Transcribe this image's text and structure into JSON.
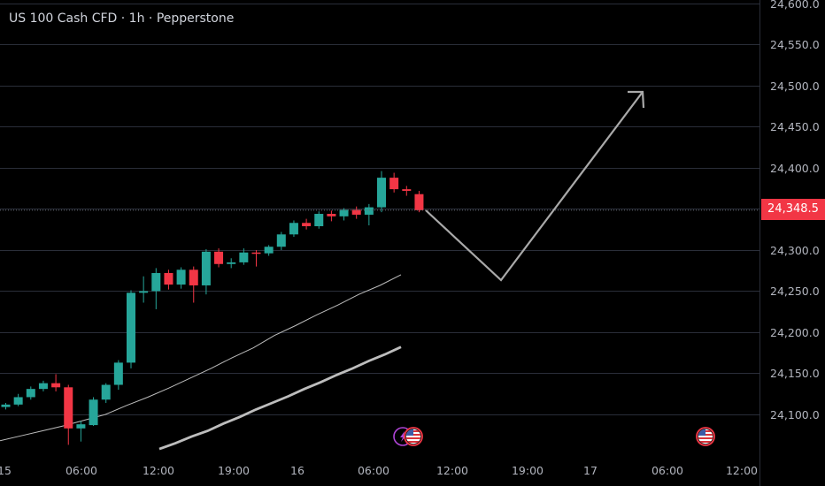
{
  "header": {
    "title": "US 100 Cash CFD · 1h · Pepperstone"
  },
  "current_price": {
    "label": "24,348.5",
    "value": 24348.5,
    "color": "#f23645"
  },
  "colors": {
    "up": "#26a69a",
    "down": "#f23645",
    "ma": "#bdbdbd",
    "arrow": "#a9a9a9",
    "grid": "#2a2e39"
  },
  "icons": [
    "lightning-event-icon",
    "us-flag-event-icon",
    "us-flag-event-icon"
  ],
  "chart_data": {
    "type": "candlestick",
    "price_axis": {
      "ticks": [
        "24,100.0",
        "24,150.0",
        "24,200.0",
        "24,250.0",
        "24,300.0",
        "24,350.0",
        "24,400.0",
        "24,450.0",
        "24,500.0",
        "24,550.0",
        "24,600.0"
      ],
      "ylim": [
        24058,
        24604
      ]
    },
    "time_axis": {
      "ticks": [
        "15",
        "06:00",
        "12:00",
        "19:00",
        "16",
        "06:00",
        "12:00",
        "19:00",
        "17",
        "06:00",
        "12:00"
      ]
    },
    "candles": [
      {
        "o": 24109,
        "h": 24114,
        "l": 24106,
        "c": 24112
      },
      {
        "o": 24112,
        "h": 24125,
        "l": 24110,
        "c": 24121
      },
      {
        "o": 24121,
        "h": 24134,
        "l": 24118,
        "c": 24131
      },
      {
        "o": 24131,
        "h": 24141,
        "l": 24128,
        "c": 24138
      },
      {
        "o": 24138,
        "h": 24149,
        "l": 24128,
        "c": 24133
      },
      {
        "o": 24133,
        "h": 24136,
        "l": 24063,
        "c": 24083
      },
      {
        "o": 24083,
        "h": 24092,
        "l": 24067,
        "c": 24088
      },
      {
        "o": 24087,
        "h": 24121,
        "l": 24086,
        "c": 24118
      },
      {
        "o": 24118,
        "h": 24138,
        "l": 24114,
        "c": 24136
      },
      {
        "o": 24136,
        "h": 24166,
        "l": 24130,
        "c": 24163
      },
      {
        "o": 24163,
        "h": 24251,
        "l": 24156,
        "c": 24248
      },
      {
        "o": 24248,
        "h": 24268,
        "l": 24236,
        "c": 24250
      },
      {
        "o": 24250,
        "h": 24278,
        "l": 24228,
        "c": 24272
      },
      {
        "o": 24272,
        "h": 24276,
        "l": 24252,
        "c": 24258
      },
      {
        "o": 24258,
        "h": 24279,
        "l": 24253,
        "c": 24276
      },
      {
        "o": 24276,
        "h": 24280,
        "l": 24236,
        "c": 24257
      },
      {
        "o": 24257,
        "h": 24301,
        "l": 24246,
        "c": 24298
      },
      {
        "o": 24298,
        "h": 24302,
        "l": 24279,
        "c": 24283
      },
      {
        "o": 24283,
        "h": 24290,
        "l": 24278,
        "c": 24285
      },
      {
        "o": 24285,
        "h": 24302,
        "l": 24282,
        "c": 24297
      },
      {
        "o": 24297,
        "h": 24300,
        "l": 24280,
        "c": 24296
      },
      {
        "o": 24296,
        "h": 24306,
        "l": 24293,
        "c": 24304
      },
      {
        "o": 24304,
        "h": 24322,
        "l": 24300,
        "c": 24319
      },
      {
        "o": 24319,
        "h": 24336,
        "l": 24316,
        "c": 24333
      },
      {
        "o": 24333,
        "h": 24338,
        "l": 24325,
        "c": 24329
      },
      {
        "o": 24329,
        "h": 24347,
        "l": 24326,
        "c": 24344
      },
      {
        "o": 24344,
        "h": 24348,
        "l": 24335,
        "c": 24341
      },
      {
        "o": 24341,
        "h": 24351,
        "l": 24336,
        "c": 24349
      },
      {
        "o": 24349,
        "h": 24353,
        "l": 24338,
        "c": 24343
      },
      {
        "o": 24343,
        "h": 24356,
        "l": 24330,
        "c": 24352
      },
      {
        "o": 24352,
        "h": 24396,
        "l": 24346,
        "c": 24388
      },
      {
        "o": 24388,
        "h": 24394,
        "l": 24370,
        "c": 24374
      },
      {
        "o": 24374,
        "h": 24378,
        "l": 24366,
        "c": 24372
      },
      {
        "o": 24368,
        "h": 24372,
        "l": 24346,
        "c": 24348.5
      }
    ],
    "ma_fast": [
      24068,
      24074,
      24080,
      24086,
      24093,
      24100,
      24111,
      24121,
      24132,
      24144,
      24156,
      24169,
      24181,
      24196,
      24208,
      24221,
      24233,
      24246,
      24257,
      24270
    ],
    "ma_slow": [
      24058,
      24065,
      24073,
      24080,
      24089,
      24097,
      24106,
      24114,
      24122,
      24131,
      24139,
      24148,
      24156,
      24165,
      24173,
      24182
    ]
  }
}
